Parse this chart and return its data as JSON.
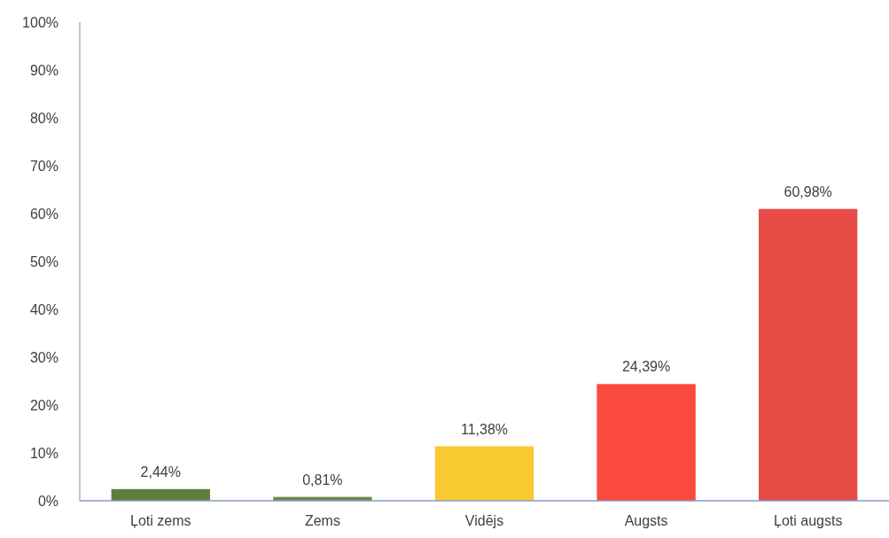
{
  "chart_data": {
    "type": "bar",
    "categories": [
      "Ļoti zems",
      "Zems",
      "Vidējs",
      "Augsts",
      "Ļoti augsts"
    ],
    "values": [
      2.44,
      0.81,
      11.38,
      24.39,
      60.98
    ],
    "colors": [
      "#5f7d3f",
      "#6a8c48",
      "#f9c932",
      "#fa4a3f",
      "#e84c47"
    ],
    "value_labels": [
      "2,44%",
      "0,81%",
      "11,38%",
      "24,39%",
      "60,98%"
    ],
    "ylim": [
      0,
      100
    ],
    "yticks": [
      {
        "value": 0,
        "label": "0%"
      },
      {
        "value": 10,
        "label": "10%"
      },
      {
        "value": 20,
        "label": "20%"
      },
      {
        "value": 30,
        "label": "30%"
      },
      {
        "value": 40,
        "label": "40%"
      },
      {
        "value": 50,
        "label": "50%"
      },
      {
        "value": 60,
        "label": "60%"
      },
      {
        "value": 70,
        "label": "70%"
      },
      {
        "value": 80,
        "label": "80%"
      },
      {
        "value": 90,
        "label": "90%"
      },
      {
        "value": 100,
        "label": "100%"
      }
    ]
  }
}
